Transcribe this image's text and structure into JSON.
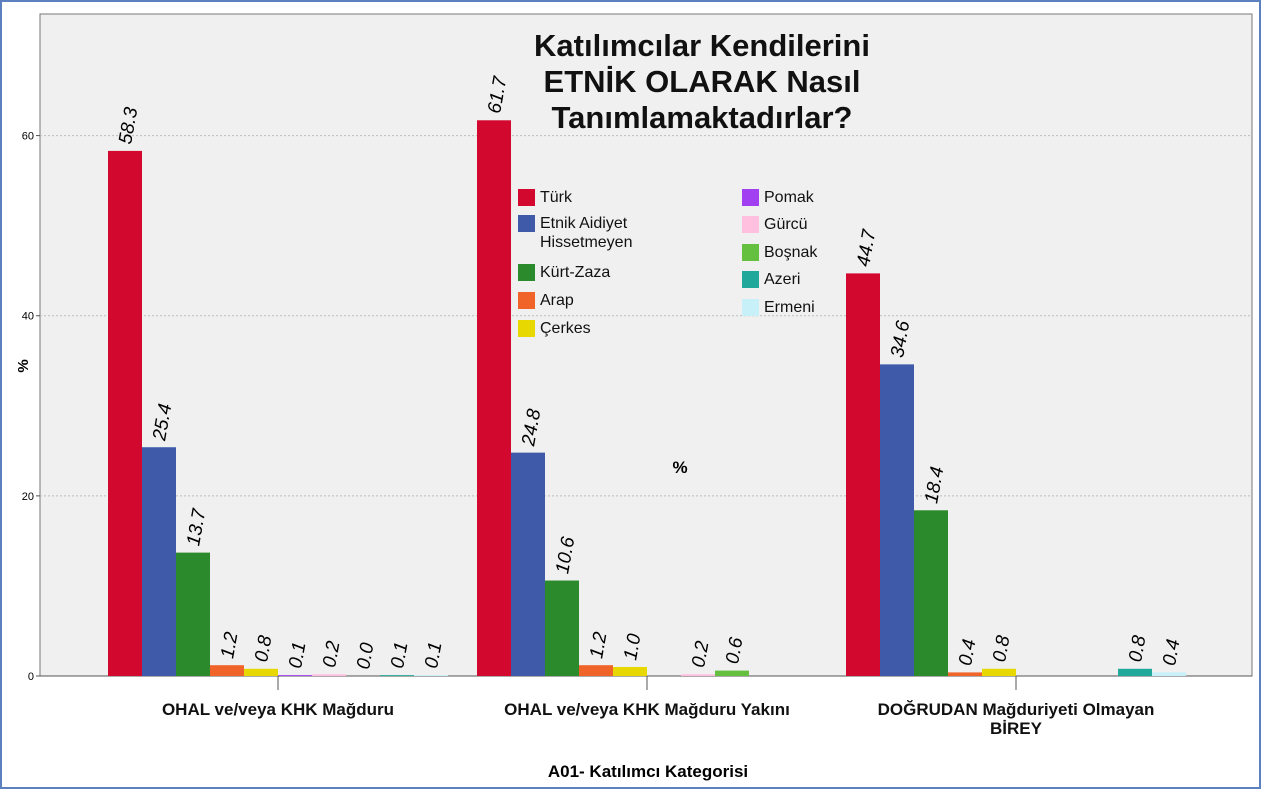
{
  "chart_data": {
    "type": "bar",
    "title": "Katılımcılar Kendilerini ETNİK OLARAK Nasıl Tanımlamaktadırlar?",
    "x_label": "A01- Katılımcı Kategorisi",
    "y_label": "%",
    "annotation": "%",
    "categories": [
      "OHAL ve/veya KHK Mağduru",
      "OHAL ve/veya KHK Mağduru Yakını",
      "DOĞRUDAN Mağduriyeti Olmayan BİREY"
    ],
    "series": [
      {
        "name": "Türk",
        "color": "#d2082f",
        "values": [
          58.3,
          61.7,
          44.7
        ],
        "value_labels": [
          "58.3",
          "61.7",
          "44.7"
        ]
      },
      {
        "name": "Etnik Aidiyet Hissetmeyen",
        "color": "#3f5aa8",
        "values": [
          25.4,
          24.8,
          34.6
        ],
        "value_labels": [
          "25.4",
          "24.8",
          "34.6"
        ]
      },
      {
        "name": "Kürt-Zaza",
        "color": "#2b8a2b",
        "values": [
          13.7,
          10.6,
          18.4
        ],
        "value_labels": [
          "13.7",
          "10.6",
          "18.4"
        ]
      },
      {
        "name": "Arap",
        "color": "#f0642a",
        "values": [
          1.2,
          1.2,
          0.4
        ],
        "value_labels": [
          "1.2",
          "1.2",
          "0.4"
        ]
      },
      {
        "name": "Çerkes",
        "color": "#e6d800",
        "values": [
          0.8,
          1.0,
          0.8
        ],
        "value_labels": [
          "0.8",
          "1.0",
          "0.8"
        ]
      },
      {
        "name": "Pomak",
        "color": "#a040f0",
        "values": [
          0.1,
          null,
          null
        ],
        "value_labels": [
          "0.1",
          null,
          null
        ]
      },
      {
        "name": "Gürcü",
        "color": "#ffc0e0",
        "values": [
          0.2,
          0.2,
          null
        ],
        "value_labels": [
          "0.2",
          "0.2",
          null
        ]
      },
      {
        "name": "Boşnak",
        "color": "#66c040",
        "values": [
          0.0,
          0.6,
          null
        ],
        "value_labels": [
          "0.0",
          "0.6",
          null
        ]
      },
      {
        "name": "Azeri",
        "color": "#20a89a",
        "values": [
          0.1,
          null,
          0.8
        ],
        "value_labels": [
          "0.1",
          null,
          "0.8"
        ]
      },
      {
        "name": "Ermeni",
        "color": "#c8f0f8",
        "values": [
          0.1,
          null,
          0.4
        ],
        "value_labels": [
          "0.1",
          null,
          "0.4"
        ]
      }
    ],
    "ylim": [
      0,
      73.5
    ],
    "yticks": [
      0,
      20,
      40,
      60
    ],
    "grid": true
  }
}
